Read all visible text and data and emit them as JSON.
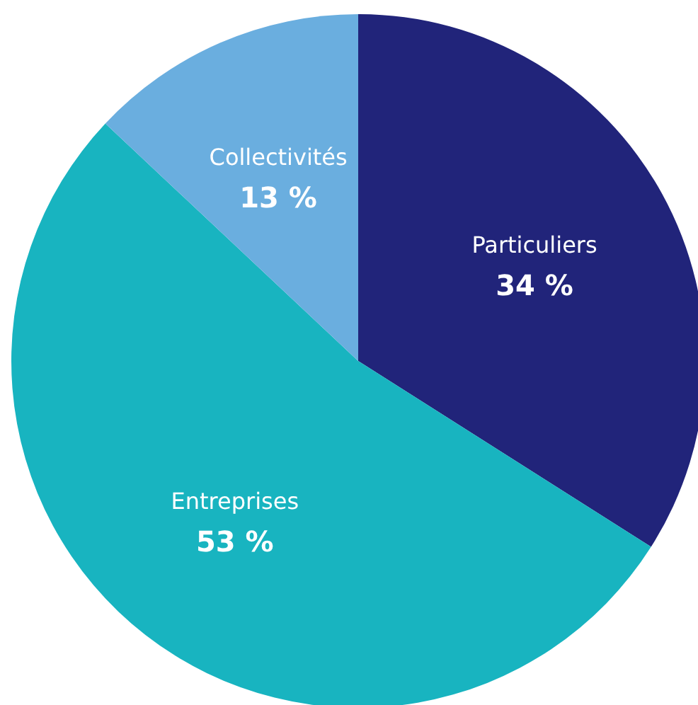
{
  "chart_data": {
    "type": "pie",
    "categories": [
      "Particuliers",
      "Entreprises",
      "Collectivités"
    ],
    "values": [
      34,
      53,
      13
    ],
    "colors": [
      "#21247a",
      "#18b4c0",
      "#6aaedf"
    ],
    "value_labels": [
      "34 %",
      "53 %",
      "13 %"
    ],
    "legend": false
  }
}
